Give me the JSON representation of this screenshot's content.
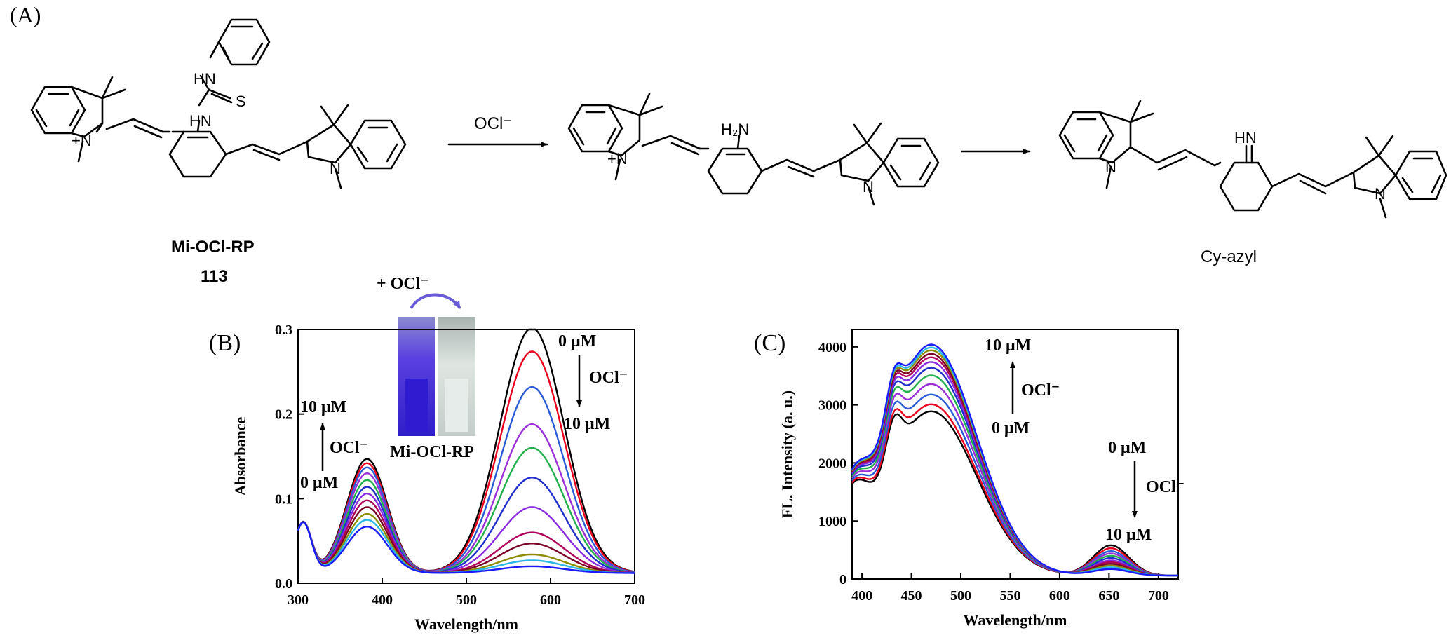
{
  "panel_labels": {
    "a": "(A)",
    "b": "(B)",
    "c": "(C)"
  },
  "scheme": {
    "reagent": "OCl⁻",
    "atom_nplus": "+N",
    "atom_n": "N",
    "atom_s": "S",
    "atom_hn": "HN",
    "atom_h2n": "H₂N",
    "compound_name": "Mi-OCl-RP",
    "compound_number": "113",
    "product_name": "Cy-azyl"
  },
  "inset": {
    "label_top": "+ OCl⁻",
    "label_bottom": "Mi-OCl-RP",
    "left_cuvette_color": "#3d2bd4",
    "right_cuvette_color": "#cfd8d4"
  },
  "chart_data": [
    {
      "type": "line",
      "panel": "B",
      "xlabel": "Wavelength/nm",
      "ylabel": "Absorbance",
      "xlim": [
        300,
        700
      ],
      "ylim": [
        0,
        0.3
      ],
      "x_ticks": [
        "300",
        "400",
        "500",
        "600",
        "700"
      ],
      "y_ticks": [
        "0.0",
        "0.1",
        "0.2",
        "0.3"
      ],
      "annotations": {
        "left_top": "10 μM",
        "left_mid": "OCl⁻",
        "left_bottom": "0 μM",
        "right_top": "0 μM",
        "right_mid": "OCl⁻",
        "right_bottom": "10 μM"
      },
      "colors": [
        "#000000",
        "#e8001c",
        "#2a5bd7",
        "#9b30d9",
        "#22b14c",
        "#1f2ecc",
        "#8a2be2",
        "#b0005a",
        "#7a0026",
        "#8c8c00",
        "#2ab7e6",
        "#1a1aff"
      ],
      "series": [
        {
          "peak1": 0.135,
          "peak2": 0.29
        },
        {
          "peak1": 0.13,
          "peak2": 0.262
        },
        {
          "peak1": 0.125,
          "peak2": 0.22
        },
        {
          "peak1": 0.118,
          "peak2": 0.176
        },
        {
          "peak1": 0.11,
          "peak2": 0.148
        },
        {
          "peak1": 0.102,
          "peak2": 0.113
        },
        {
          "peak1": 0.094,
          "peak2": 0.078
        },
        {
          "peak1": 0.086,
          "peak2": 0.048
        },
        {
          "peak1": 0.078,
          "peak2": 0.035
        },
        {
          "peak1": 0.07,
          "peak2": 0.022
        },
        {
          "peak1": 0.063,
          "peak2": 0.015
        },
        {
          "peak1": 0.055,
          "peak2": 0.008
        }
      ]
    },
    {
      "type": "line",
      "panel": "C",
      "xlabel": "Wavelength/nm",
      "ylabel": "FL. Intensity (a. u.)",
      "xlim": [
        390,
        720
      ],
      "ylim": [
        0,
        4300
      ],
      "x_ticks": [
        "400",
        "450",
        "500",
        "550",
        "600",
        "650",
        "700"
      ],
      "y_ticks": [
        "0",
        "1000",
        "2000",
        "3000",
        "4000"
      ],
      "annotations": {
        "top_top": "10 μM",
        "top_mid": "OCl⁻",
        "top_bottom": "0 μM",
        "right_top": "0 μM",
        "right_mid": "OCl⁻",
        "right_bottom": "10 μM"
      },
      "colors": [
        "#000000",
        "#e8001c",
        "#2a5bd7",
        "#9b30d9",
        "#22b14c",
        "#1f2ecc",
        "#8a2be2",
        "#b0005a",
        "#7a0026",
        "#8c8c00",
        "#2ab7e6",
        "#1a1aff"
      ],
      "series": [
        {
          "peak1": 2830,
          "peak2": 520
        },
        {
          "peak1": 2950,
          "peak2": 470
        },
        {
          "peak1": 3120,
          "peak2": 420
        },
        {
          "peak1": 3300,
          "peak2": 380
        },
        {
          "peak1": 3450,
          "peak2": 340
        },
        {
          "peak1": 3580,
          "peak2": 300
        },
        {
          "peak1": 3680,
          "peak2": 260
        },
        {
          "peak1": 3760,
          "peak2": 230
        },
        {
          "peak1": 3820,
          "peak2": 200
        },
        {
          "peak1": 3880,
          "peak2": 170
        },
        {
          "peak1": 3930,
          "peak2": 140
        },
        {
          "peak1": 3980,
          "peak2": 110
        }
      ]
    }
  ]
}
